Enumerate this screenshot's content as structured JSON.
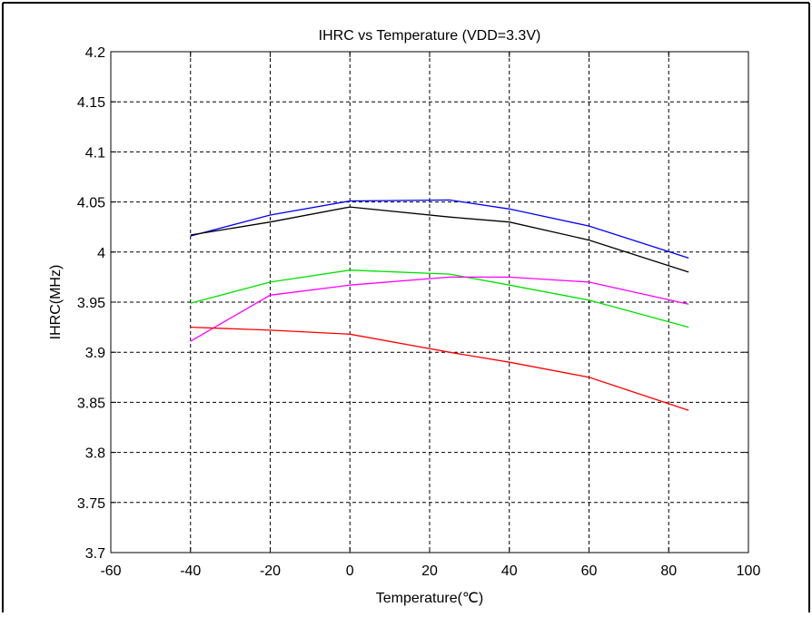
{
  "chart_data": {
    "type": "line",
    "title": "IHRC vs Temperature (VDD=3.3V)",
    "xlabel": "Temperature(℃)",
    "ylabel": "IHRC(MHz)",
    "xlim": [
      -60,
      100
    ],
    "ylim": [
      3.7,
      4.2
    ],
    "xticks": [
      "-60",
      "-40",
      "-20",
      "0",
      "20",
      "40",
      "60",
      "80",
      "100"
    ],
    "yticks": [
      "3.7",
      "3.75",
      "3.8",
      "3.85",
      "3.9",
      "3.95",
      "4",
      "4.05",
      "4.1",
      "4.15",
      "4.2"
    ],
    "grid": true,
    "grid_style": "dashed",
    "legend": "none",
    "series": [
      {
        "color": "#0000ff",
        "x": [
          -40,
          -20,
          0,
          25,
          40,
          60,
          85
        ],
        "y": [
          4.016,
          4.037,
          4.051,
          4.052,
          4.043,
          4.026,
          3.994
        ]
      },
      {
        "color": "#000000",
        "x": [
          -40,
          -20,
          0,
          25,
          40,
          60,
          85
        ],
        "y": [
          4.017,
          4.03,
          4.045,
          4.035,
          4.03,
          4.012,
          3.98
        ]
      },
      {
        "color": "#00e000",
        "x": [
          -40,
          -20,
          0,
          25,
          40,
          60,
          85
        ],
        "y": [
          3.949,
          3.97,
          3.982,
          3.978,
          3.967,
          3.952,
          3.925
        ]
      },
      {
        "color": "#ff00ff",
        "x": [
          -40,
          -20,
          0,
          25,
          40,
          60,
          85
        ],
        "y": [
          3.911,
          3.957,
          3.967,
          3.975,
          3.975,
          3.97,
          3.948
        ]
      },
      {
        "color": "#ff0000",
        "x": [
          -40,
          -20,
          0,
          25,
          40,
          60,
          85
        ],
        "y": [
          3.925,
          3.922,
          3.918,
          3.9,
          3.89,
          3.875,
          3.842
        ]
      }
    ]
  }
}
